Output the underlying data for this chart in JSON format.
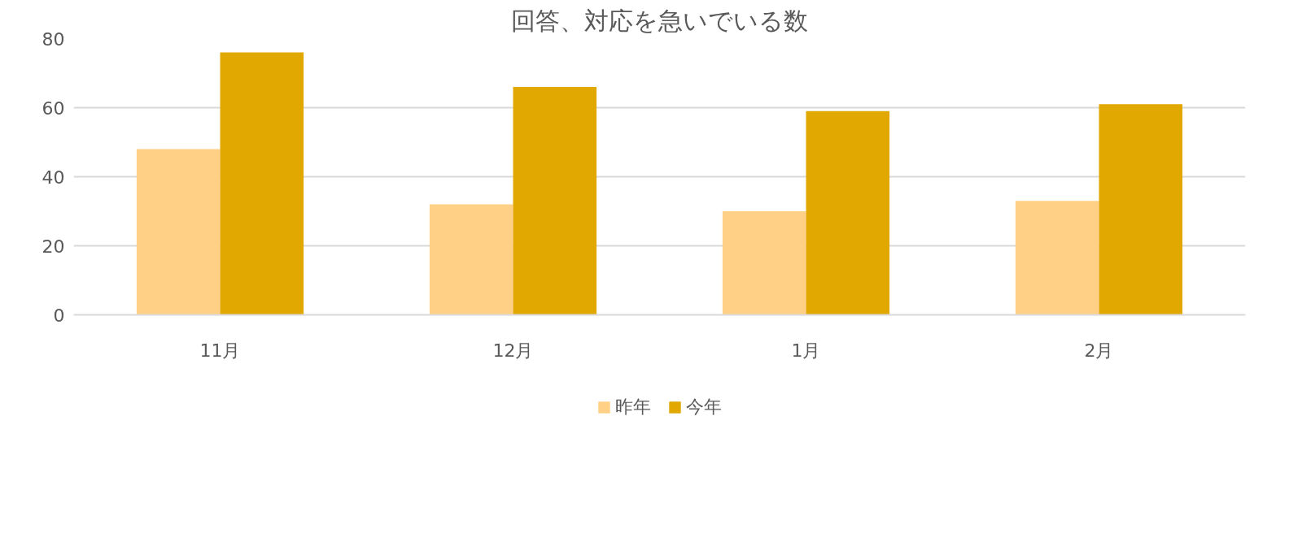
{
  "chart_data": {
    "type": "bar",
    "title": "回答、対応を急いでいる数",
    "categories": [
      "11月",
      "12月",
      "1月",
      "2月"
    ],
    "series": [
      {
        "name": "昨年",
        "color": "#ffd086",
        "values": [
          48,
          32,
          30,
          33
        ]
      },
      {
        "name": "今年",
        "color": "#e0a800",
        "values": [
          76,
          66,
          59,
          61
        ]
      }
    ],
    "ylim": [
      0,
      80
    ],
    "yticks": [
      0,
      20,
      40,
      60,
      80
    ],
    "grid": "y",
    "legend": "bottom"
  }
}
